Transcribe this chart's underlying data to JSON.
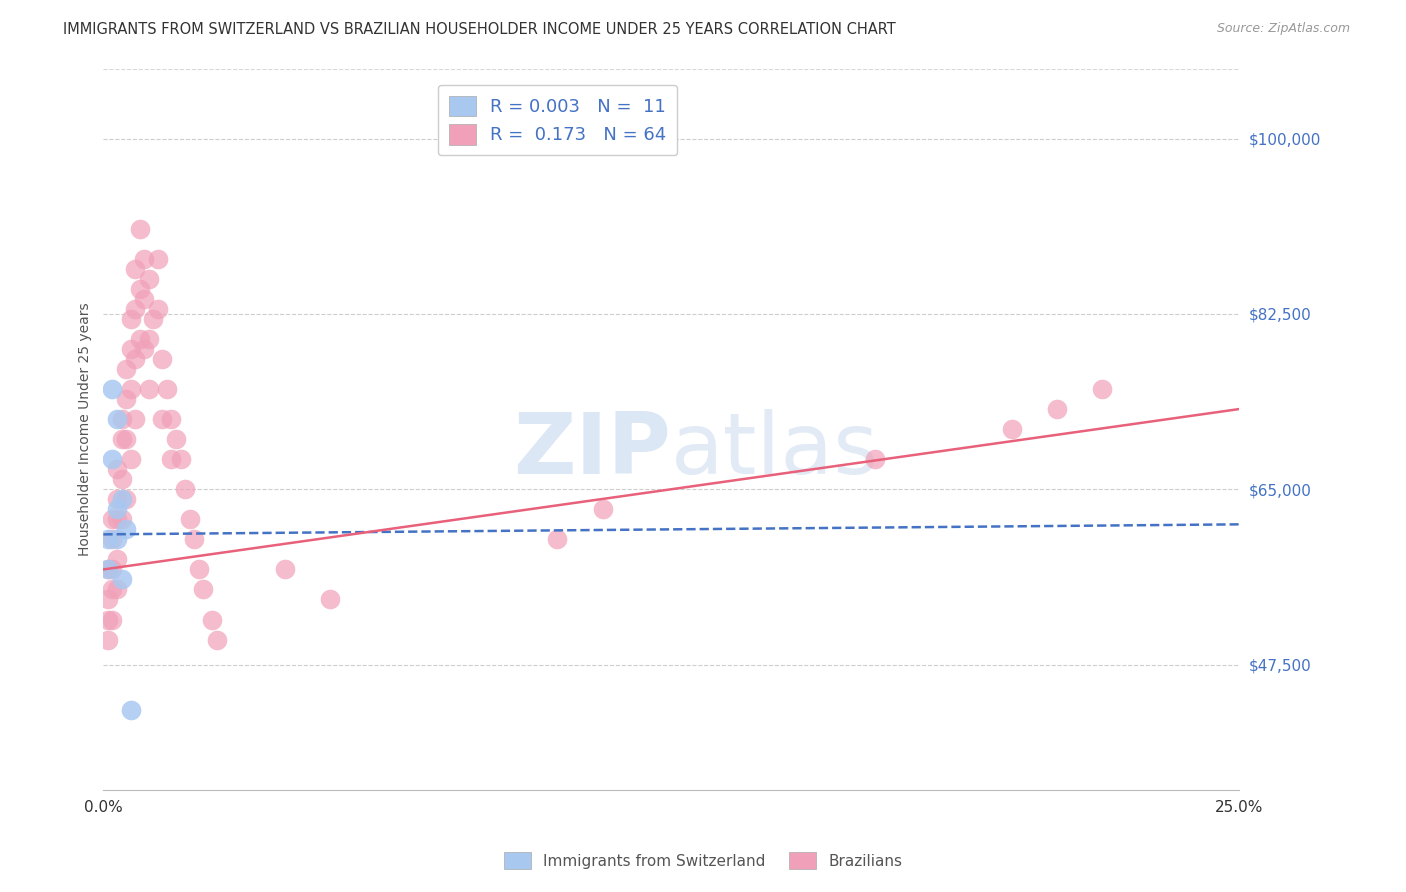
{
  "title": "IMMIGRANTS FROM SWITZERLAND VS BRAZILIAN HOUSEHOLDER INCOME UNDER 25 YEARS CORRELATION CHART",
  "source": "Source: ZipAtlas.com",
  "ylabel": "Householder Income Under 25 years",
  "xlim": [
    0.0,
    0.25
  ],
  "ylim": [
    35000,
    107000
  ],
  "yticks": [
    47500,
    65000,
    82500,
    100000
  ],
  "ytick_labels": [
    "$47,500",
    "$65,000",
    "$82,500",
    "$100,000"
  ],
  "xticks": [
    0.0,
    0.05,
    0.1,
    0.15,
    0.2,
    0.25
  ],
  "xtick_labels": [
    "0.0%",
    "",
    "",
    "",
    "",
    "25.0%"
  ],
  "background_color": "#ffffff",
  "grid_color": "#c8c8c8",
  "watermark": "ZIPatlas",
  "blue_color": "#a8c8f0",
  "pink_color": "#f0a0b8",
  "blue_line_color": "#4472c4",
  "pink_line_color": "#e8607a",
  "blue_x": [
    0.001,
    0.001,
    0.002,
    0.002,
    0.003,
    0.003,
    0.003,
    0.004,
    0.004,
    0.005,
    0.006
  ],
  "blue_y": [
    60000,
    57000,
    75000,
    68000,
    72000,
    63000,
    60000,
    64000,
    56000,
    61000,
    43000
  ],
  "pink_x": [
    0.001,
    0.001,
    0.001,
    0.001,
    0.002,
    0.002,
    0.002,
    0.002,
    0.002,
    0.003,
    0.003,
    0.003,
    0.003,
    0.003,
    0.004,
    0.004,
    0.004,
    0.004,
    0.005,
    0.005,
    0.005,
    0.005,
    0.006,
    0.006,
    0.006,
    0.006,
    0.007,
    0.007,
    0.007,
    0.007,
    0.008,
    0.008,
    0.008,
    0.009,
    0.009,
    0.009,
    0.01,
    0.01,
    0.01,
    0.011,
    0.012,
    0.012,
    0.013,
    0.013,
    0.014,
    0.015,
    0.015,
    0.016,
    0.017,
    0.018,
    0.019,
    0.02,
    0.021,
    0.022,
    0.024,
    0.025,
    0.04,
    0.05,
    0.1,
    0.11,
    0.17,
    0.2,
    0.21,
    0.22
  ],
  "pink_y": [
    57000,
    54000,
    52000,
    50000,
    62000,
    60000,
    57000,
    55000,
    52000,
    67000,
    64000,
    62000,
    58000,
    55000,
    72000,
    70000,
    66000,
    62000,
    77000,
    74000,
    70000,
    64000,
    82000,
    79000,
    75000,
    68000,
    87000,
    83000,
    78000,
    72000,
    91000,
    85000,
    80000,
    88000,
    84000,
    79000,
    86000,
    80000,
    75000,
    82000,
    88000,
    83000,
    78000,
    72000,
    75000,
    72000,
    68000,
    70000,
    68000,
    65000,
    62000,
    60000,
    57000,
    55000,
    52000,
    50000,
    57000,
    54000,
    60000,
    63000,
    68000,
    71000,
    73000,
    75000
  ]
}
